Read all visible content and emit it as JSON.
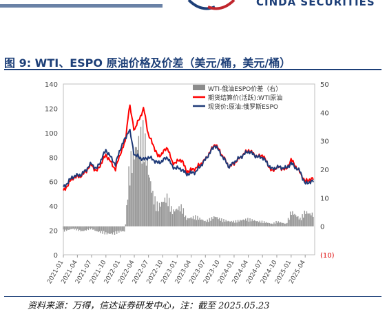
{
  "header": {
    "logo_text": "CINDA SECURITIES",
    "figure_title": "图 9:  WTI、ESPO 原油价格及价差（美元/桶，美元/桶）",
    "source_note": "资料来源：万得，信达证券研发中心，注：截至 2025.05.23"
  },
  "colors": {
    "brand": "#1d3f78",
    "spread": "#8c8c8c",
    "wti": "#ff0000",
    "espo": "#1f3a78"
  },
  "chart_data": {
    "type": "line",
    "x_ticks": [
      "2021-01",
      "2021-04",
      "2021-07",
      "2021-10",
      "2022-01",
      "2022-04",
      "2022-07",
      "2022-10",
      "2023-01",
      "2023-04",
      "2023-07",
      "2023-10",
      "2024-01",
      "2024-04",
      "2024-07",
      "2024-10",
      "2025-01",
      "2025-04"
    ],
    "y_left": {
      "min": 0,
      "max": 140,
      "ticks": [
        0,
        20,
        40,
        60,
        80,
        100,
        120,
        140
      ]
    },
    "y_right": {
      "min": -10,
      "max": 50,
      "ticks": [
        "(10)",
        "0",
        "10",
        "20",
        "30",
        "40",
        "50"
      ]
    },
    "legend": [
      "WTI-俄油ESPO价差（右）",
      "期货结算价(活跃):WTI原油",
      "现货价:原油:俄罗斯ESPO"
    ],
    "legend_position": "top-right",
    "series": [
      {
        "name": "期货结算价(活跃):WTI原油",
        "axis": "left",
        "dates": [
          "2021-01",
          "2021-03",
          "2021-05",
          "2021-07",
          "2021-08",
          "2021-10",
          "2021-12",
          "2022-01",
          "2022-02",
          "2022-03",
          "2022-04",
          "2022-06",
          "2022-07",
          "2022-08",
          "2022-09",
          "2022-11",
          "2022-12",
          "2023-02",
          "2023-03",
          "2023-05",
          "2023-07",
          "2023-09",
          "2023-10",
          "2023-12",
          "2024-01",
          "2024-04",
          "2024-06",
          "2024-07",
          "2024-09",
          "2024-10",
          "2024-12",
          "2025-01",
          "2025-03",
          "2025-04",
          "2025-05"
        ],
        "values": [
          52,
          63,
          65,
          74,
          68,
          82,
          70,
          83,
          92,
          123,
          102,
          120,
          98,
          90,
          80,
          88,
          75,
          78,
          68,
          71,
          78,
          91,
          85,
          72,
          75,
          86,
          80,
          82,
          68,
          72,
          70,
          78,
          67,
          60,
          62
        ]
      },
      {
        "name": "现货价:原油:俄罗斯ESPO",
        "axis": "left",
        "dates": [
          "2021-01",
          "2021-03",
          "2021-05",
          "2021-07",
          "2021-08",
          "2021-10",
          "2021-12",
          "2022-01",
          "2022-02",
          "2022-03",
          "2022-04",
          "2022-06",
          "2022-07",
          "2022-08",
          "2022-09",
          "2022-11",
          "2022-12",
          "2023-02",
          "2023-03",
          "2023-05",
          "2023-07",
          "2023-09",
          "2023-10",
          "2023-12",
          "2024-01",
          "2024-04",
          "2024-06",
          "2024-07",
          "2024-09",
          "2024-10",
          "2024-12",
          "2025-01",
          "2025-03",
          "2025-04",
          "2025-05"
        ],
        "values": [
          55,
          64,
          66,
          75,
          70,
          86,
          74,
          87,
          95,
          103,
          82,
          78,
          80,
          78,
          75,
          80,
          72,
          70,
          66,
          68,
          78,
          90,
          84,
          72,
          76,
          85,
          80,
          80,
          70,
          72,
          71,
          75,
          68,
          58,
          60
        ]
      },
      {
        "name": "WTI-俄油ESPO价差（右）",
        "axis": "right",
        "dates": [
          "2021-01",
          "2021-03",
          "2021-05",
          "2021-07",
          "2021-08",
          "2021-10",
          "2021-12",
          "2022-01",
          "2022-02",
          "2022-03",
          "2022-04",
          "2022-06",
          "2022-07",
          "2022-08",
          "2022-09",
          "2022-11",
          "2022-12",
          "2023-02",
          "2023-03",
          "2023-05",
          "2023-07",
          "2023-09",
          "2023-10",
          "2023-12",
          "2024-01",
          "2024-04",
          "2024-06",
          "2024-07",
          "2024-09",
          "2024-10",
          "2024-12",
          "2025-01",
          "2025-03",
          "2025-04",
          "2025-05"
        ],
        "values": [
          -2,
          -1,
          -2,
          -1,
          -2,
          -3,
          -3,
          -2,
          -2,
          25,
          30,
          38,
          22,
          12,
          8,
          12,
          6,
          8,
          3,
          4,
          2,
          4,
          3,
          2,
          2,
          3,
          2,
          2,
          1,
          2,
          1,
          6,
          3,
          6,
          5
        ]
      }
    ]
  }
}
